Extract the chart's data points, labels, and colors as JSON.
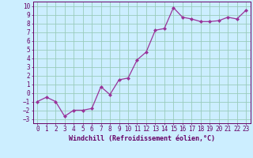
{
  "x": [
    0,
    1,
    2,
    3,
    4,
    5,
    6,
    7,
    8,
    9,
    10,
    11,
    12,
    13,
    14,
    15,
    16,
    17,
    18,
    19,
    20,
    21,
    22,
    23
  ],
  "y": [
    -1,
    -0.5,
    -1,
    -2.7,
    -2,
    -2,
    -1.8,
    0.7,
    -0.2,
    1.5,
    1.7,
    3.8,
    4.7,
    7.2,
    7.4,
    9.8,
    8.7,
    8.5,
    8.2,
    8.2,
    8.3,
    8.7,
    8.5,
    9.5
  ],
  "line_color": "#993399",
  "marker": "D",
  "marker_size": 2.0,
  "bg_color": "#cceeff",
  "grid_color": "#99ccbb",
  "xlabel": "Windchill (Refroidissement éolien,°C)",
  "xlim": [
    -0.5,
    23.5
  ],
  "ylim": [
    -3.5,
    10.5
  ],
  "yticks": [
    -3,
    -2,
    -1,
    0,
    1,
    2,
    3,
    4,
    5,
    6,
    7,
    8,
    9,
    10
  ],
  "xticks": [
    0,
    1,
    2,
    3,
    4,
    5,
    6,
    7,
    8,
    9,
    10,
    11,
    12,
    13,
    14,
    15,
    16,
    17,
    18,
    19,
    20,
    21,
    22,
    23
  ],
  "font_color": "#660066",
  "tick_fontsize": 5.5,
  "label_fontsize": 6.0,
  "linewidth": 0.9
}
